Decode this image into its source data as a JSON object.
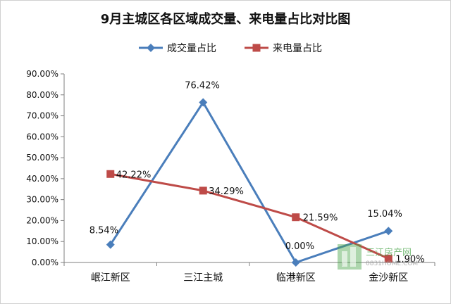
{
  "chart_data": {
    "type": "line",
    "title": "9月主城区各区域成交量、来电量占比对比图",
    "xlabel": "",
    "ylabel": "",
    "categories": [
      "岷江新区",
      "三江主城",
      "临港新区",
      "金沙新区"
    ],
    "ylim": [
      0,
      90
    ],
    "yticks": [
      "0.00%",
      "10.00%",
      "20.00%",
      "30.00%",
      "40.00%",
      "50.00%",
      "60.00%",
      "70.00%",
      "80.00%",
      "90.00%"
    ],
    "grid": false,
    "legend_position": "top",
    "series": [
      {
        "name": "成交量占比",
        "color": "#4a7ebb",
        "marker": "diamond",
        "values": [
          8.54,
          76.42,
          0.0,
          15.04
        ],
        "labels": [
          "8.54%",
          "76.42%",
          "0.00%",
          "15.04%"
        ]
      },
      {
        "name": "来电量占比",
        "color": "#be4b48",
        "marker": "square",
        "values": [
          42.22,
          34.29,
          21.59,
          1.9
        ],
        "labels": [
          "42.22%",
          "34.29%",
          "21.59%",
          "1.90%"
        ]
      }
    ]
  },
  "watermark": {
    "text": "三江房产网",
    "url": "0831HOME.COM",
    "color": "#4aa54a"
  }
}
